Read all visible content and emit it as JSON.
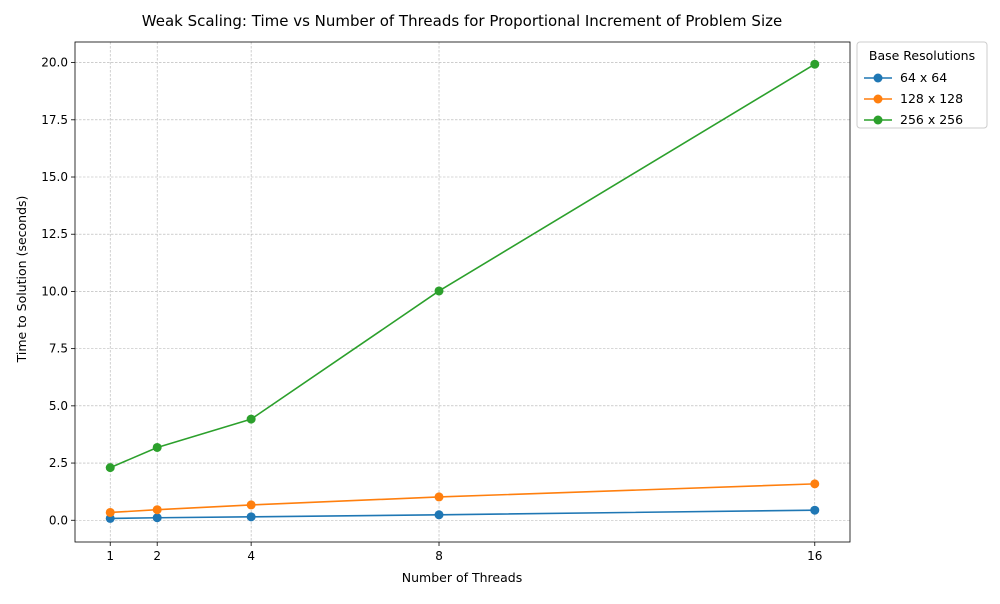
{
  "chart_data": {
    "type": "line",
    "title": "Weak Scaling: Time vs Number of Threads for Proportional Increment of Problem Size",
    "xlabel": "Number of Threads",
    "ylabel": "Time to Solution (seconds)",
    "x": [
      1,
      2,
      4,
      8,
      16
    ],
    "x_ticks": [
      "1",
      "2",
      "4",
      "8",
      "16"
    ],
    "y_ticks": [
      "0.0",
      "2.5",
      "5.0",
      "7.5",
      "10.0",
      "12.5",
      "15.0",
      "17.5",
      "20.0"
    ],
    "xlim": [
      0.25,
      16.75
    ],
    "ylim": [
      -0.95,
      20.9
    ],
    "grid": true,
    "legend_title": "Base Resolutions",
    "legend_position": "outside-top-right",
    "series": [
      {
        "name": "64 x 64",
        "color": "#1f77b4",
        "values": [
          0.08,
          0.11,
          0.15,
          0.24,
          0.44
        ]
      },
      {
        "name": "128 x 128",
        "color": "#ff7f0e",
        "values": [
          0.34,
          0.46,
          0.67,
          1.02,
          1.59
        ]
      },
      {
        "name": "256 x 256",
        "color": "#2ca02c",
        "values": [
          2.3,
          3.18,
          4.42,
          10.02,
          19.93
        ]
      }
    ]
  }
}
